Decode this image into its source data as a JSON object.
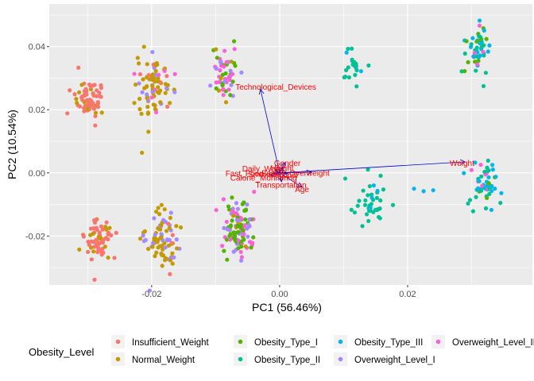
{
  "chart_data": {
    "type": "scatter",
    "xlabel": "PC1 (56.46%)",
    "ylabel": "PC2 (10.54%)",
    "xlim": [
      -0.036,
      0.0395
    ],
    "ylim": [
      -0.0355,
      0.0535
    ],
    "x_ticks": [
      -0.02,
      0.0,
      0.02
    ],
    "x_tick_labels": [
      "-0.02",
      "0.00",
      "0.02"
    ],
    "y_ticks": [
      -0.02,
      0.0,
      0.02,
      0.04
    ],
    "y_tick_labels": [
      "-0.02",
      "0.00",
      "0.02",
      "0.04"
    ],
    "grid": true,
    "panel_background": "#ebebeb",
    "legend": {
      "title": "Obesity_Level",
      "position": "bottom",
      "entries": [
        {
          "label": "Insufficient_Weight",
          "color": "#F8766D"
        },
        {
          "label": "Normal_Weight",
          "color": "#C49A00"
        },
        {
          "label": "Obesity_Type_I",
          "color": "#53B400"
        },
        {
          "label": "Obesity_Type_II",
          "color": "#00C094"
        },
        {
          "label": "Obesity_Type_III",
          "color": "#00B6EB"
        },
        {
          "label": "Overweight_Level_I",
          "color": "#A58AFF"
        },
        {
          "label": "Overweight_Level_II",
          "color": "#FB61D7"
        }
      ]
    },
    "clusters": [
      {
        "cx": -0.0295,
        "cy": 0.0235,
        "sx": 0.0012,
        "sy": 0.0033,
        "n": 70,
        "mix": {
          "Insufficient_Weight": 0.82,
          "Normal_Weight": 0.18
        }
      },
      {
        "cx": -0.0285,
        "cy": -0.0205,
        "sx": 0.0012,
        "sy": 0.0033,
        "n": 65,
        "mix": {
          "Insufficient_Weight": 0.82,
          "Normal_Weight": 0.18
        }
      },
      {
        "cx": -0.0195,
        "cy": 0.0265,
        "sx": 0.0013,
        "sy": 0.0048,
        "n": 85,
        "mix": {
          "Normal_Weight": 0.65,
          "Overweight_Level_I": 0.2,
          "Insufficient_Weight": 0.08,
          "Overweight_Level_II": 0.07
        }
      },
      {
        "cx": -0.0185,
        "cy": -0.021,
        "sx": 0.0013,
        "sy": 0.0045,
        "n": 85,
        "mix": {
          "Normal_Weight": 0.6,
          "Overweight_Level_I": 0.35,
          "Insufficient_Weight": 0.05
        }
      },
      {
        "cx": -0.0085,
        "cy": 0.0305,
        "sx": 0.001,
        "sy": 0.004,
        "n": 60,
        "mix": {
          "Overweight_Level_II": 0.35,
          "Obesity_Type_I": 0.35,
          "Overweight_Level_I": 0.2,
          "Normal_Weight": 0.1
        }
      },
      {
        "cx": -0.0065,
        "cy": -0.0175,
        "sx": 0.0012,
        "sy": 0.0055,
        "n": 110,
        "mix": {
          "Obesity_Type_I": 0.45,
          "Overweight_Level_II": 0.25,
          "Overweight_Level_I": 0.2,
          "Normal_Weight": 0.1
        }
      },
      {
        "cx": 0.0115,
        "cy": 0.0345,
        "sx": 0.0008,
        "sy": 0.0035,
        "n": 22,
        "mix": {
          "Obesity_Type_II": 0.85,
          "Obesity_Type_III": 0.15
        }
      },
      {
        "cx": 0.0145,
        "cy": -0.0095,
        "sx": 0.0011,
        "sy": 0.0035,
        "n": 38,
        "mix": {
          "Obesity_Type_II": 0.92,
          "Obesity_Type_III": 0.08
        }
      },
      {
        "cx": 0.0305,
        "cy": 0.0395,
        "sx": 0.001,
        "sy": 0.004,
        "n": 50,
        "mix": {
          "Obesity_Type_II": 0.45,
          "Obesity_Type_III": 0.25,
          "Obesity_Type_I": 0.2,
          "Overweight_Level_II": 0.1
        }
      },
      {
        "cx": 0.032,
        "cy": -0.004,
        "sx": 0.0011,
        "sy": 0.0035,
        "n": 55,
        "mix": {
          "Obesity_Type_II": 0.4,
          "Obesity_Type_III": 0.35,
          "Obesity_Type_I": 0.15,
          "Overweight_Level_II": 0.1
        }
      }
    ],
    "extra_points": [
      {
        "x": 0.021,
        "y": -0.005,
        "group": "Obesity_Type_III"
      },
      {
        "x": 0.0225,
        "y": -0.0058,
        "group": "Obesity_Type_III"
      },
      {
        "x": 0.024,
        "y": -0.0055,
        "group": "Obesity_Type_III"
      }
    ],
    "vectors": [
      {
        "label": "Technological_Devices",
        "x": -0.003,
        "y": 0.0265
      },
      {
        "label": "Weight",
        "x": 0.029,
        "y": 0.0035
      },
      {
        "label": "Gender",
        "x": 0.0008,
        "y": 0.0032
      },
      {
        "label": "Height",
        "x": 0.0005,
        "y": 0.0018
      },
      {
        "label": "Daily_Water",
        "x": -0.0007,
        "y": 0.0012
      },
      {
        "label": "Family_Overweight",
        "x": 0.005,
        "y": 0.0002
      },
      {
        "label": "Fast_Food",
        "x": -0.001,
        "y": -0.0003
      },
      {
        "label": "Alcohol",
        "x": 0.0012,
        "y": -0.0002
      },
      {
        "label": "Smoke",
        "x": -0.0005,
        "y": 0.0001
      },
      {
        "label": "Calorie_Monitoring",
        "x": -0.0015,
        "y": -0.0008
      },
      {
        "label": "Transportation",
        "x": 0.0003,
        "y": -0.0028
      },
      {
        "label": "Age",
        "x": 0.0035,
        "y": -0.0045
      }
    ],
    "vector_label_positions": [
      {
        "label": "Technological_Devices",
        "x": -0.0006,
        "y": 0.0272
      },
      {
        "label": "Weight",
        "x": 0.0285,
        "y": 0.0031
      },
      {
        "label": "Gender",
        "x": 0.0012,
        "y": 0.0031
      },
      {
        "label": "Height",
        "x": 0.0004,
        "y": 0.0016
      },
      {
        "label": "Daily_Water",
        "x": -0.0025,
        "y": 0.0013
      },
      {
        "label": "Family_Overweight",
        "x": 0.0025,
        "y": 0.0
      },
      {
        "label": "Fast_Food",
        "x": -0.0055,
        "y": -0.0002
      },
      {
        "label": "Alcohol",
        "x": 0.0008,
        "y": -0.0007
      },
      {
        "label": "Smoke",
        "x": -0.003,
        "y": -0.0004
      },
      {
        "label": "Calorie_Monitoring",
        "x": -0.0025,
        "y": -0.0015
      },
      {
        "label": "Transportation",
        "x": 0.0002,
        "y": -0.0038
      },
      {
        "label": "Age",
        "x": 0.0035,
        "y": -0.0052
      }
    ],
    "vector_color": "#0000cc",
    "vector_label_color": "#ff0000"
  }
}
